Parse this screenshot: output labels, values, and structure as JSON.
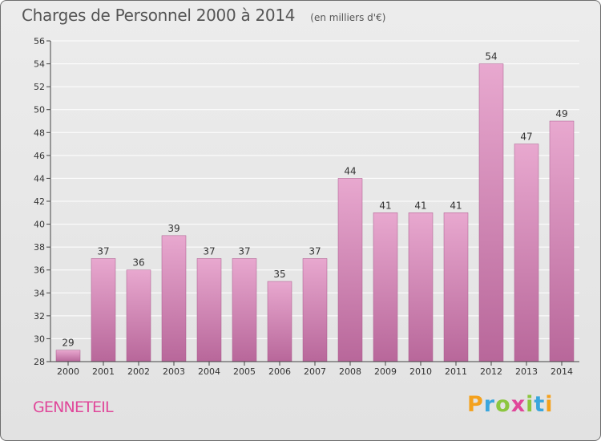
{
  "title": "Charges de Personnel 2000 à 2014",
  "subtitle": "(en milliers d'€)",
  "commune": "GENNETEIL",
  "brand": {
    "letters": [
      "P",
      "r",
      "o",
      "x",
      "i",
      "t",
      "i"
    ],
    "colors": [
      "#f4a11d",
      "#3aa6dd",
      "#8cc63f",
      "#e0479a",
      "#8cc63f",
      "#3aa6dd",
      "#f4a11d"
    ]
  },
  "colors": {
    "bar_top": "#e8a8cf",
    "bar_bottom": "#b8679a",
    "axis": "#444444",
    "grid": "#ffffff",
    "label": "#333333"
  },
  "chart_data": {
    "type": "bar",
    "categories": [
      "2000",
      "2001",
      "2002",
      "2003",
      "2004",
      "2005",
      "2006",
      "2007",
      "2008",
      "2009",
      "2010",
      "2011",
      "2012",
      "2013",
      "2014"
    ],
    "values": [
      29,
      37,
      36,
      39,
      37,
      37,
      35,
      37,
      44,
      41,
      41,
      41,
      54,
      47,
      49
    ],
    "ylim": [
      28,
      56
    ],
    "yticks": [
      28,
      30,
      32,
      34,
      36,
      38,
      40,
      42,
      44,
      46,
      48,
      50,
      52,
      54,
      56
    ],
    "title": "Charges de Personnel 2000 à 2014",
    "xlabel": "",
    "ylabel": "",
    "grid": true,
    "legend": "none"
  }
}
